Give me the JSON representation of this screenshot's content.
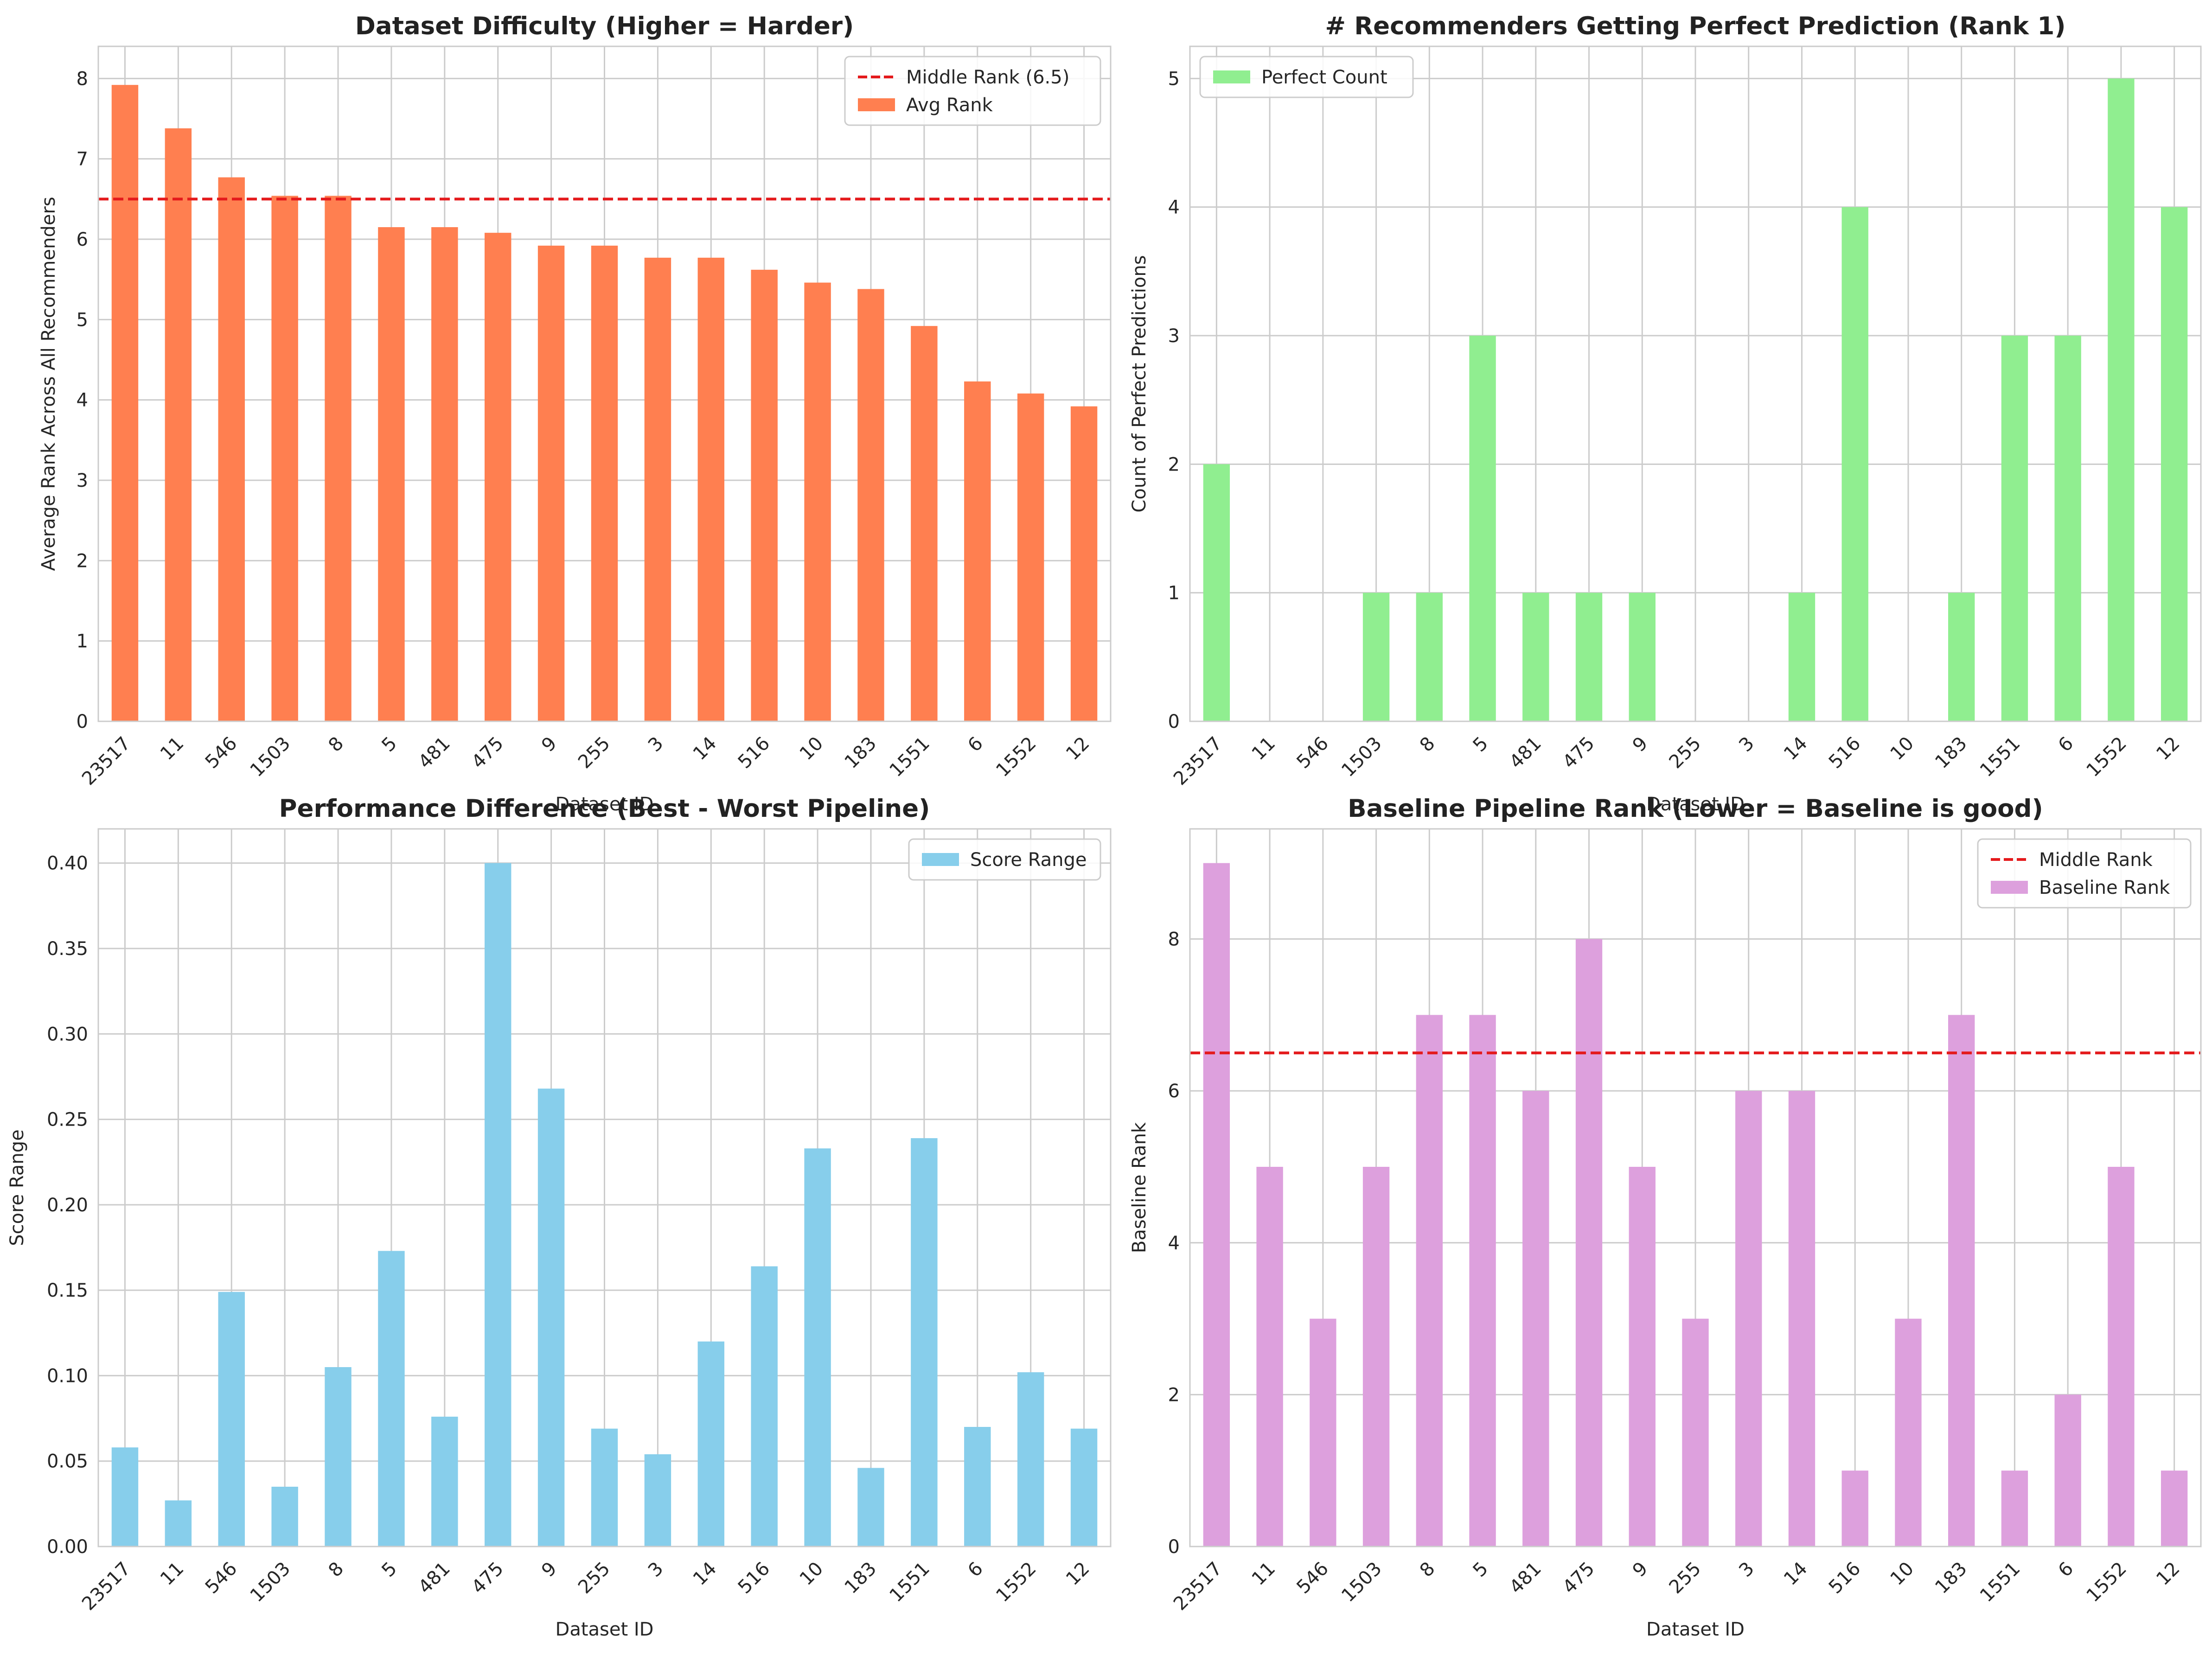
{
  "chart_data": [
    {
      "type": "bar",
      "title": "Dataset Difficulty (Higher = Harder)",
      "xlabel": "Dataset ID",
      "ylabel": "Average Rank Across All Recommenders",
      "categories": [
        "23517",
        "11",
        "546",
        "1503",
        "8",
        "5",
        "481",
        "475",
        "9",
        "255",
        "3",
        "14",
        "516",
        "10",
        "183",
        "1551",
        "6",
        "1552",
        "12"
      ],
      "series": [
        {
          "name": "Avg Rank",
          "color": "#FF7F50",
          "values": [
            7.92,
            7.38,
            6.77,
            6.54,
            6.54,
            6.15,
            6.15,
            6.08,
            5.92,
            5.92,
            5.77,
            5.77,
            5.62,
            5.46,
            5.38,
            4.92,
            4.23,
            4.08,
            3.92
          ]
        }
      ],
      "reference_line": {
        "name": "Middle Rank (6.5)",
        "value": 6.5,
        "color": "#E41A1C"
      },
      "ylim": [
        0,
        8.4
      ],
      "yticks": [
        0,
        1,
        2,
        3,
        4,
        5,
        6,
        7,
        8
      ],
      "ytick_format": "int",
      "legend": "top-right",
      "legend_order": [
        "line",
        "bar"
      ],
      "grid": true
    },
    {
      "type": "bar",
      "title": "# Recommenders Getting Perfect Prediction (Rank 1)",
      "xlabel": "Dataset ID",
      "ylabel": "Count of Perfect Predictions",
      "categories": [
        "23517",
        "11",
        "546",
        "1503",
        "8",
        "5",
        "481",
        "475",
        "9",
        "255",
        "3",
        "14",
        "516",
        "10",
        "183",
        "1551",
        "6",
        "1552",
        "12"
      ],
      "series": [
        {
          "name": "Perfect Count",
          "color": "#90EE90",
          "values": [
            2,
            0,
            0,
            1,
            1,
            3,
            1,
            1,
            1,
            0,
            0,
            1,
            4,
            0,
            1,
            3,
            3,
            5,
            4
          ]
        }
      ],
      "ylim": [
        0,
        5.25
      ],
      "yticks": [
        0,
        1,
        2,
        3,
        4,
        5
      ],
      "ytick_format": "int",
      "legend": "top-left",
      "legend_order": [
        "bar"
      ],
      "grid": true
    },
    {
      "type": "bar",
      "title": "Performance Difference (Best - Worst Pipeline)",
      "xlabel": "Dataset ID",
      "ylabel": "Score Range",
      "categories": [
        "23517",
        "11",
        "546",
        "1503",
        "8",
        "5",
        "481",
        "475",
        "9",
        "255",
        "3",
        "14",
        "516",
        "10",
        "183",
        "1551",
        "6",
        "1552",
        "12"
      ],
      "series": [
        {
          "name": "Score Range",
          "color": "#87CEEB",
          "values": [
            0.058,
            0.027,
            0.149,
            0.035,
            0.105,
            0.173,
            0.076,
            0.4,
            0.268,
            0.069,
            0.054,
            0.12,
            0.164,
            0.233,
            0.046,
            0.239,
            0.07,
            0.102,
            0.069
          ]
        }
      ],
      "ylim": [
        0,
        0.42
      ],
      "yticks": [
        0,
        0.05,
        0.1,
        0.15,
        0.2,
        0.25,
        0.3,
        0.35,
        0.4
      ],
      "ytick_format": "2dp",
      "legend": "top-right",
      "legend_order": [
        "bar"
      ],
      "grid": true
    },
    {
      "type": "bar",
      "title": "Baseline Pipeline Rank (Lower = Baseline is good)",
      "xlabel": "Dataset ID",
      "ylabel": "Baseline Rank",
      "categories": [
        "23517",
        "11",
        "546",
        "1503",
        "8",
        "5",
        "481",
        "475",
        "9",
        "255",
        "3",
        "14",
        "516",
        "10",
        "183",
        "1551",
        "6",
        "1552",
        "12"
      ],
      "series": [
        {
          "name": "Baseline Rank",
          "color": "#DDA0DD",
          "values": [
            9,
            5,
            3,
            5,
            7,
            7,
            6,
            8,
            5,
            3,
            6,
            6,
            1,
            3,
            7,
            1,
            2,
            5,
            1
          ]
        }
      ],
      "reference_line": {
        "name": "Middle Rank",
        "value": 6.5,
        "color": "#E41A1C"
      },
      "ylim": [
        0,
        9.45
      ],
      "yticks": [
        0,
        2,
        4,
        6,
        8
      ],
      "ytick_format": "int",
      "legend": "top-right",
      "legend_order": [
        "line",
        "bar"
      ],
      "grid": true
    }
  ]
}
